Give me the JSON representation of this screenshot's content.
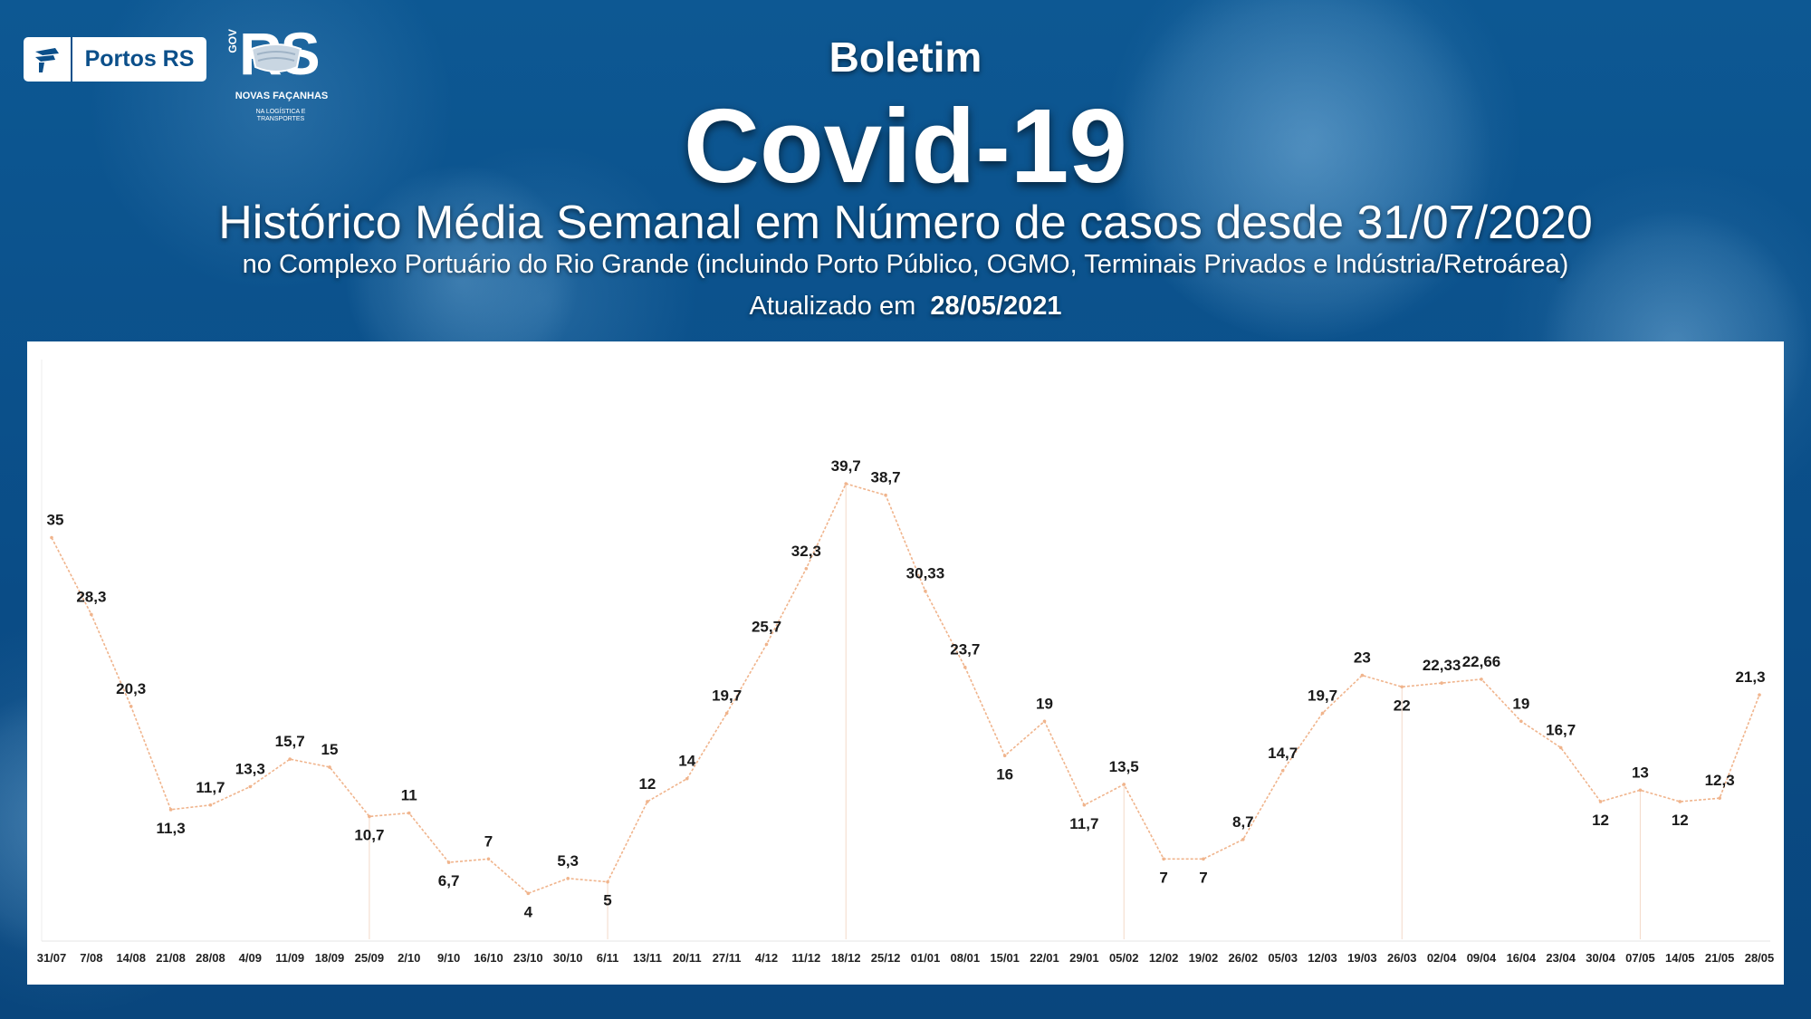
{
  "header": {
    "kicker": "Boletim",
    "title": "Covid-19",
    "subtitle": "Histórico Média Semanal em Número de casos desde 31/07/2020",
    "description": "no Complexo Portuário do Rio Grande (incluindo Porto Público, OGMO, Terminais Privados e Indústria/Retroárea)",
    "updated_label": "Atualizado em",
    "updated_date": "28/05/2021"
  },
  "logos": {
    "portos_text": "Portos RS",
    "rs_text": "RS",
    "gov_text": "GOV",
    "slogan": "NOVAS FAÇANHAS",
    "slogan_sub": "NA LOGÍSTICA E TRANSPORTES"
  },
  "colors": {
    "background": "#0b4f8a",
    "line": "#f0b48c",
    "label": "#1a1a1a"
  },
  "chart_data": {
    "type": "line",
    "title": "",
    "xlabel": "",
    "ylabel": "",
    "ylim": [
      0,
      45
    ],
    "grid": false,
    "legend": "none",
    "categories": [
      "31/07",
      "7/08",
      "14/08",
      "21/08",
      "28/08",
      "4/09",
      "11/09",
      "18/09",
      "25/09",
      "2/10",
      "9/10",
      "16/10",
      "23/10",
      "30/10",
      "6/11",
      "13/11",
      "20/11",
      "27/11",
      "4/12",
      "11/12",
      "18/12",
      "25/12",
      "01/01",
      "08/01",
      "15/01",
      "22/01",
      "29/01",
      "05/02",
      "12/02",
      "19/02",
      "26/02",
      "05/03",
      "12/03",
      "19/03",
      "26/03",
      "02/04",
      "09/04",
      "16/04",
      "23/04",
      "30/04",
      "07/05",
      "14/05",
      "21/05",
      "28/05"
    ],
    "values": [
      35,
      28.3,
      20.3,
      11.3,
      11.7,
      13.3,
      15.7,
      15,
      10.7,
      11,
      6.7,
      7,
      4,
      5.3,
      5,
      12,
      14,
      19.7,
      25.7,
      32.3,
      39.7,
      38.7,
      30.33,
      23.7,
      16,
      19,
      11.7,
      13.5,
      7,
      7,
      8.7,
      14.7,
      19.7,
      23,
      22,
      22.33,
      22.66,
      19,
      16.7,
      12,
      13,
      12,
      12.3,
      21.3
    ],
    "data_labels": [
      "35",
      "28,3",
      "20,3",
      "11,3",
      "11,7",
      "13,3",
      "15,7",
      "15",
      "10,7",
      "11",
      "6,7",
      "7",
      "4",
      "5,3",
      "5",
      "12",
      "14",
      "19,7",
      "25,7",
      "32,3",
      "39,7",
      "38,7",
      "30,33",
      "23,7",
      "16",
      "19",
      "11,7",
      "13,5",
      "7",
      "7",
      "8,7",
      "14,7",
      "19,7",
      "23",
      "22",
      "22,33",
      "22,66",
      "19",
      "16,7",
      "12",
      "13",
      "12",
      "12,3",
      "21,3"
    ]
  }
}
